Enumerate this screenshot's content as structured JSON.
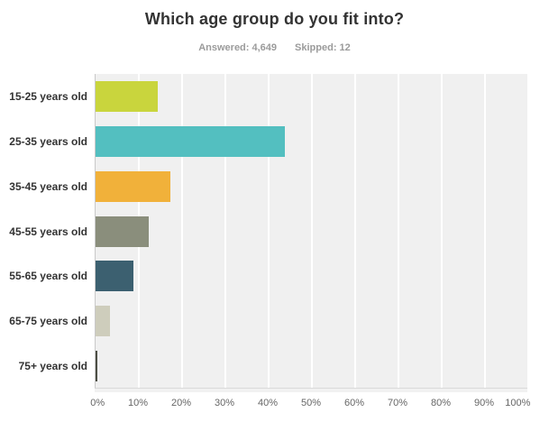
{
  "chart": {
    "title": "Which age group do you fit into?",
    "answered": "Answered: 4,649",
    "skipped": "Skipped: 12"
  },
  "chart_data": {
    "type": "bar",
    "orientation": "horizontal",
    "title": "Which age group do you fit into?",
    "answered_count": "4,649",
    "skipped_count": "12",
    "categories": [
      "15-25 years old",
      "25-35 years old",
      "35-45 years old",
      "45-55 years old",
      "55-65 years old",
      "65-75 years old",
      "75+ years old"
    ],
    "values": [
      14.4,
      43.8,
      17.3,
      12.2,
      8.8,
      3.3,
      0.5
    ],
    "unit": "%",
    "bar_colors": [
      "#c9d53d",
      "#53bfc0",
      "#f1b13a",
      "#8a8e7c",
      "#3c6070",
      "#cecdbc",
      "#4c4e44"
    ],
    "x_ticks": [
      "0%",
      "10%",
      "20%",
      "30%",
      "40%",
      "50%",
      "60%",
      "70%",
      "80%",
      "90%",
      "100%"
    ],
    "xlim": [
      0,
      100
    ],
    "grid": true,
    "gridline_color": "#ffffff",
    "plot_background": "#f0f0f0",
    "legend": "none"
  }
}
